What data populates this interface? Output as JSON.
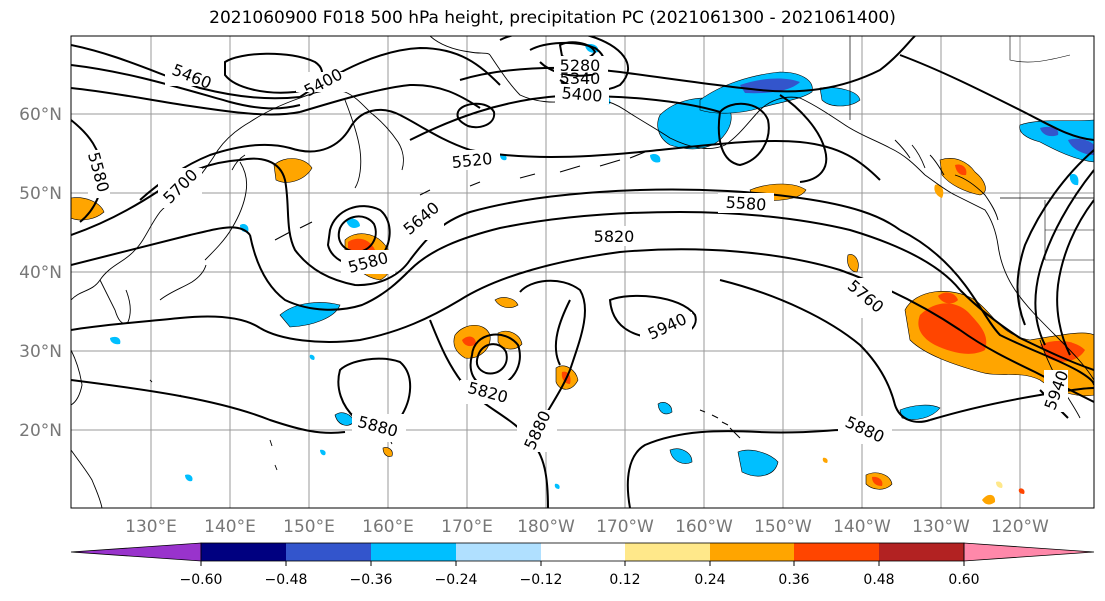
{
  "title": "2021060900 F018 500 hPa height, precipitation PC (2021061300 - 2021061400)",
  "lat_labels": [
    "60°N",
    "50°N",
    "40°N",
    "30°N",
    "20°N"
  ],
  "lon_labels": [
    "130°E",
    "140°E",
    "150°E",
    "160°E",
    "170°E",
    "180°W",
    "170°W",
    "160°W",
    "150°W",
    "140°W",
    "130°W",
    "120°W"
  ],
  "contour_labels": [
    "5460",
    "5400",
    "5280",
    "5340",
    "5400",
    "5520",
    "5580",
    "5700",
    "5640",
    "5580",
    "5580",
    "5820",
    "5760",
    "5940",
    "5820",
    "5880",
    "5880",
    "5880",
    "5940"
  ],
  "colorbar": {
    "colors": [
      "#9933cc",
      "#000080",
      "#3355cc",
      "#00bfff",
      "#b0e0ff",
      "#ffffff",
      "#ffe88a",
      "#ffa500",
      "#ff4500",
      "#b22222",
      "#ff88aa"
    ],
    "tick_labels": [
      "−0.60",
      "−0.48",
      "−0.36",
      "−0.24",
      "−0.12",
      "0.12",
      "0.24",
      "0.36",
      "0.48",
      "0.60"
    ]
  }
}
